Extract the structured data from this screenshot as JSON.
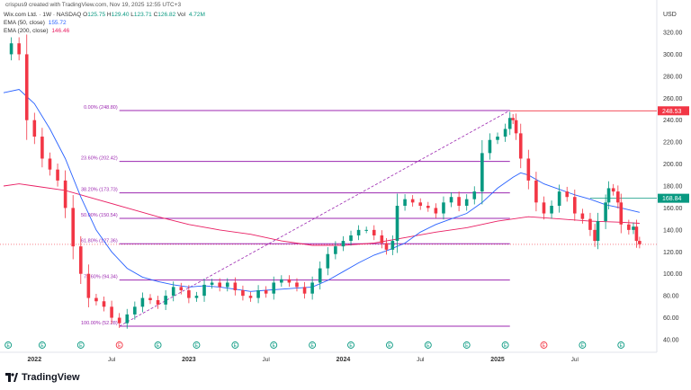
{
  "header": {
    "creator": "crispus9 created with TradingView.com, Nov 19, 2025 12:55 UTC+3",
    "symbol": "Wix.com Ltd. · 1W · NASDAQ",
    "ohlc": [
      {
        "k": "O",
        "v": "125.75"
      },
      {
        "k": "H",
        "v": "129.40"
      },
      {
        "k": "L",
        "v": "123.71"
      },
      {
        "k": "C",
        "v": "126.82"
      }
    ],
    "vol_label": "Vol",
    "vol_value": "4.72M",
    "ema50_label": "EMA (50, close)",
    "ema50_value": "155.72",
    "ema200_label": "EMA (200, close)",
    "ema200_value": "146.46"
  },
  "colors": {
    "up": "#089981",
    "down": "#f23645",
    "fib": "#9c27b0",
    "ema50": "#2962ff",
    "ema200": "#e91e63"
  },
  "brand": "TradingView",
  "chart_data": {
    "type": "candlestick",
    "currency": "USD",
    "y_ticks": [
      40,
      60,
      80,
      100,
      120,
      140,
      160,
      180,
      200,
      220,
      240,
      260,
      280,
      300,
      320
    ],
    "x_ticks": [
      "2022",
      "Jul",
      "2023",
      "Jul",
      "2024",
      "Jul",
      "2025",
      "Jul"
    ],
    "price_labels": [
      {
        "value": 248.53,
        "color": "#f23645"
      },
      {
        "value": 168.84,
        "color": "#089981"
      }
    ],
    "fib_levels": [
      {
        "label": "0.00% (248.80)",
        "value": 248.8
      },
      {
        "label": "23.60% (202.42)",
        "value": 202.42
      },
      {
        "label": "38.20% (173.73)",
        "value": 173.73
      },
      {
        "label": "50.00% (150.54)",
        "value": 150.54
      },
      {
        "label": "61.80% (127.36)",
        "value": 127.36
      },
      {
        "label": "78.60% (94.34)",
        "value": 94.34
      },
      {
        "label": "100.00% (52.28)",
        "value": 52.28
      }
    ],
    "trend_line": {
      "from": 52.28,
      "to": 248.8
    },
    "price_path": [
      [
        2021.8,
        300
      ],
      [
        2021.85,
        310
      ],
      [
        2021.9,
        300
      ],
      [
        2021.95,
        240
      ],
      [
        2022.0,
        225
      ],
      [
        2022.05,
        205
      ],
      [
        2022.1,
        195
      ],
      [
        2022.15,
        185
      ],
      [
        2022.2,
        160
      ],
      [
        2022.25,
        125
      ],
      [
        2022.3,
        100
      ],
      [
        2022.35,
        78
      ],
      [
        2022.4,
        75
      ],
      [
        2022.45,
        70
      ],
      [
        2022.5,
        60
      ],
      [
        2022.55,
        55
      ],
      [
        2022.6,
        63
      ],
      [
        2022.65,
        70
      ],
      [
        2022.7,
        78
      ],
      [
        2022.75,
        76
      ],
      [
        2022.8,
        72
      ],
      [
        2022.85,
        80
      ],
      [
        2022.9,
        88
      ],
      [
        2022.95,
        85
      ],
      [
        2023.0,
        78
      ],
      [
        2023.05,
        80
      ],
      [
        2023.1,
        90
      ],
      [
        2023.15,
        92
      ],
      [
        2023.2,
        88
      ],
      [
        2023.25,
        92
      ],
      [
        2023.3,
        85
      ],
      [
        2023.35,
        80
      ],
      [
        2023.4,
        78
      ],
      [
        2023.45,
        85
      ],
      [
        2023.5,
        82
      ],
      [
        2023.55,
        92
      ],
      [
        2023.6,
        95
      ],
      [
        2023.65,
        92
      ],
      [
        2023.7,
        88
      ],
      [
        2023.75,
        82
      ],
      [
        2023.8,
        92
      ],
      [
        2023.85,
        105
      ],
      [
        2023.9,
        118
      ],
      [
        2023.95,
        125
      ],
      [
        2024.0,
        130
      ],
      [
        2024.05,
        135
      ],
      [
        2024.1,
        140
      ],
      [
        2024.15,
        140
      ],
      [
        2024.2,
        135
      ],
      [
        2024.25,
        128
      ],
      [
        2024.28,
        122
      ],
      [
        2024.32,
        130
      ],
      [
        2024.35,
        162
      ],
      [
        2024.4,
        168
      ],
      [
        2024.45,
        165
      ],
      [
        2024.5,
        162
      ],
      [
        2024.55,
        160
      ],
      [
        2024.6,
        155
      ],
      [
        2024.65,
        165
      ],
      [
        2024.7,
        170
      ],
      [
        2024.75,
        162
      ],
      [
        2024.8,
        168
      ],
      [
        2024.85,
        175
      ],
      [
        2024.9,
        210
      ],
      [
        2024.95,
        222
      ],
      [
        2025.0,
        225
      ],
      [
        2025.05,
        232
      ],
      [
        2025.08,
        242
      ],
      [
        2025.1,
        240
      ],
      [
        2025.12,
        228
      ],
      [
        2025.15,
        205
      ],
      [
        2025.2,
        185
      ],
      [
        2025.25,
        165
      ],
      [
        2025.3,
        155
      ],
      [
        2025.35,
        162
      ],
      [
        2025.4,
        175
      ],
      [
        2025.45,
        170
      ],
      [
        2025.5,
        155
      ],
      [
        2025.55,
        150
      ],
      [
        2025.6,
        140
      ],
      [
        2025.63,
        130
      ],
      [
        2025.65,
        148
      ],
      [
        2025.7,
        165
      ],
      [
        2025.72,
        178
      ],
      [
        2025.75,
        175
      ],
      [
        2025.78,
        165
      ],
      [
        2025.8,
        145
      ],
      [
        2025.85,
        140
      ],
      [
        2025.88,
        143
      ],
      [
        2025.9,
        130
      ],
      [
        2025.92,
        127
      ]
    ],
    "ema50_path": [
      [
        2021.8,
        265
      ],
      [
        2021.9,
        268
      ],
      [
        2022.0,
        255
      ],
      [
        2022.1,
        232
      ],
      [
        2022.2,
        205
      ],
      [
        2022.3,
        170
      ],
      [
        2022.4,
        140
      ],
      [
        2022.5,
        120
      ],
      [
        2022.6,
        105
      ],
      [
        2022.7,
        97
      ],
      [
        2022.8,
        93
      ],
      [
        2022.9,
        90
      ],
      [
        2023.0,
        88
      ],
      [
        2023.1,
        89
      ],
      [
        2023.2,
        88
      ],
      [
        2023.3,
        86
      ],
      [
        2023.4,
        84
      ],
      [
        2023.5,
        85
      ],
      [
        2023.6,
        86
      ],
      [
        2023.7,
        87
      ],
      [
        2023.8,
        88
      ],
      [
        2023.9,
        94
      ],
      [
        2024.0,
        102
      ],
      [
        2024.1,
        110
      ],
      [
        2024.2,
        117
      ],
      [
        2024.3,
        122
      ],
      [
        2024.4,
        128
      ],
      [
        2024.5,
        138
      ],
      [
        2024.6,
        145
      ],
      [
        2024.7,
        150
      ],
      [
        2024.8,
        155
      ],
      [
        2024.9,
        165
      ],
      [
        2025.0,
        178
      ],
      [
        2025.1,
        188
      ],
      [
        2025.15,
        192
      ],
      [
        2025.2,
        190
      ],
      [
        2025.3,
        182
      ],
      [
        2025.4,
        177
      ],
      [
        2025.5,
        172
      ],
      [
        2025.6,
        168
      ],
      [
        2025.7,
        163
      ],
      [
        2025.8,
        160
      ],
      [
        2025.92,
        156
      ]
    ],
    "ema200_path": [
      [
        2021.8,
        180
      ],
      [
        2021.9,
        182
      ],
      [
        2022.0,
        180
      ],
      [
        2022.2,
        176
      ],
      [
        2022.4,
        168
      ],
      [
        2022.6,
        160
      ],
      [
        2022.8,
        152
      ],
      [
        2023.0,
        145
      ],
      [
        2023.2,
        140
      ],
      [
        2023.4,
        136
      ],
      [
        2023.6,
        130
      ],
      [
        2023.8,
        126
      ],
      [
        2024.0,
        126
      ],
      [
        2024.2,
        128
      ],
      [
        2024.4,
        133
      ],
      [
        2024.6,
        138
      ],
      [
        2024.8,
        142
      ],
      [
        2025.0,
        148
      ],
      [
        2025.2,
        152
      ],
      [
        2025.4,
        150
      ],
      [
        2025.6,
        148
      ],
      [
        2025.8,
        147
      ],
      [
        2025.92,
        146
      ]
    ],
    "earnings_markers": [
      {
        "x": 2021.83,
        "type": "E",
        "color": "#089981"
      },
      {
        "x": 2022.05,
        "type": "E",
        "color": "#089981"
      },
      {
        "x": 2022.3,
        "type": "E",
        "color": "#089981"
      },
      {
        "x": 2022.55,
        "type": "E",
        "color": "#f23645"
      },
      {
        "x": 2022.8,
        "type": "E",
        "color": "#089981"
      },
      {
        "x": 2023.05,
        "type": "E",
        "color": "#089981"
      },
      {
        "x": 2023.3,
        "type": "E",
        "color": "#089981"
      },
      {
        "x": 2023.55,
        "type": "E",
        "color": "#089981"
      },
      {
        "x": 2023.8,
        "type": "E",
        "color": "#089981"
      },
      {
        "x": 2024.05,
        "type": "E",
        "color": "#089981"
      },
      {
        "x": 2024.3,
        "type": "E",
        "color": "#089981"
      },
      {
        "x": 2024.55,
        "type": "E",
        "color": "#089981"
      },
      {
        "x": 2024.8,
        "type": "E",
        "color": "#089981"
      },
      {
        "x": 2025.05,
        "type": "E",
        "color": "#089981"
      },
      {
        "x": 2025.3,
        "type": "E",
        "color": "#f23645"
      },
      {
        "x": 2025.55,
        "type": "E",
        "color": "#089981"
      },
      {
        "x": 2025.8,
        "type": "E",
        "color": "#089981"
      }
    ]
  }
}
